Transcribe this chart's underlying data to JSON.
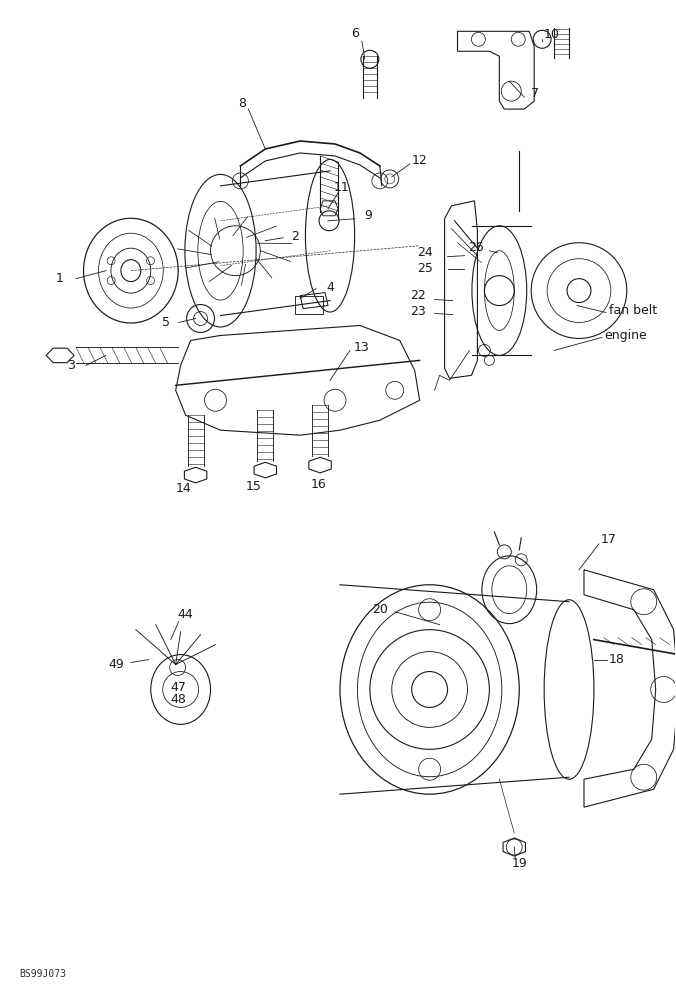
{
  "bg_color": "#ffffff",
  "fig_width": 6.76,
  "fig_height": 10.0,
  "dpi": 100,
  "watermark": "BS99J073",
  "line_color": "#1a1a1a",
  "line_width": 0.8,
  "font_size": 9,
  "xlim": [
    0,
    676
  ],
  "ylim": [
    0,
    1000
  ]
}
